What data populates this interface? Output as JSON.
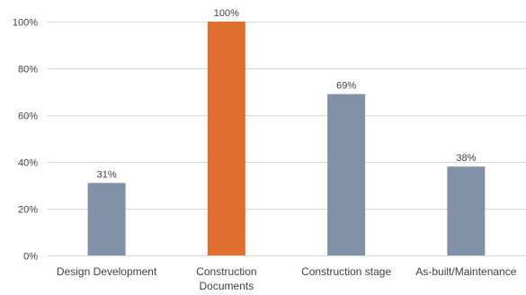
{
  "chart_data": {
    "type": "bar",
    "categories": [
      "Design Development",
      "Construction Documents",
      "Construction stage",
      "As-built/Maintenance"
    ],
    "category_lines": [
      [
        "Design Development"
      ],
      [
        "Construction",
        "Documents"
      ],
      [
        "Construction stage"
      ],
      [
        "As-built/Maintenance"
      ]
    ],
    "values": [
      31,
      100,
      69,
      38
    ],
    "data_labels": [
      "31%",
      "100%",
      "69%",
      "38%"
    ],
    "ylim": [
      0,
      100
    ],
    "y_ticks": [
      0,
      20,
      40,
      60,
      80,
      100
    ],
    "y_tick_labels": [
      "0%",
      "20%",
      "40%",
      "60%",
      "80%",
      "100%"
    ],
    "title": "",
    "xlabel": "",
    "ylabel": "",
    "grid": true,
    "legend": "none",
    "colors": {
      "bar_default": "#8091a8",
      "bar_highlight": "#e07032",
      "gridline": "#d9d9d9",
      "text": "#404040"
    },
    "highlight_index": 1
  }
}
